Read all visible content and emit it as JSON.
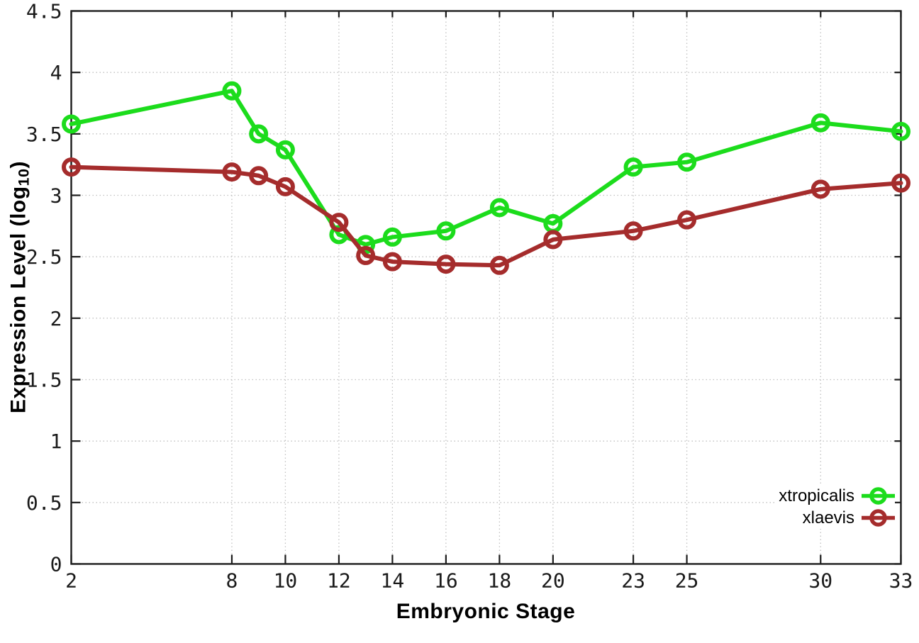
{
  "chart_data": {
    "type": "line",
    "title": "",
    "xlabel": "Embryonic Stage",
    "ylabel_parts": {
      "prefix": "Expression Level (log",
      "sub": "10",
      "suffix": ")"
    },
    "xlim": [
      2,
      33
    ],
    "ylim": [
      0,
      4.5
    ],
    "x_ticks": [
      2,
      8,
      10,
      12,
      14,
      16,
      18,
      20,
      23,
      25,
      30,
      33
    ],
    "y_ticks": [
      0,
      0.5,
      1,
      1.5,
      2,
      2.5,
      3,
      3.5,
      4,
      4.5
    ],
    "grid": true,
    "legend_position": "bottom-right",
    "x": [
      2,
      8,
      9,
      10,
      12,
      13,
      14,
      16,
      18,
      20,
      23,
      25,
      30,
      33
    ],
    "series": [
      {
        "name": "xtropicalis",
        "color": "#1cdc1c",
        "marker": "open-circle",
        "values": [
          3.58,
          3.85,
          3.5,
          3.37,
          2.68,
          2.6,
          2.66,
          2.71,
          2.9,
          2.77,
          3.23,
          3.27,
          3.59,
          3.52
        ]
      },
      {
        "name": "xlaevis",
        "color": "#a52c2c",
        "marker": "open-circle",
        "values": [
          3.23,
          3.19,
          3.16,
          3.07,
          2.78,
          2.51,
          2.46,
          2.44,
          2.43,
          2.64,
          2.71,
          2.8,
          3.05,
          3.1
        ]
      }
    ],
    "style": {
      "grid_color": "#c0c0c0",
      "border_color": "#1c1c1c",
      "background_color": "#ffffff",
      "text_color": "#000000"
    }
  }
}
